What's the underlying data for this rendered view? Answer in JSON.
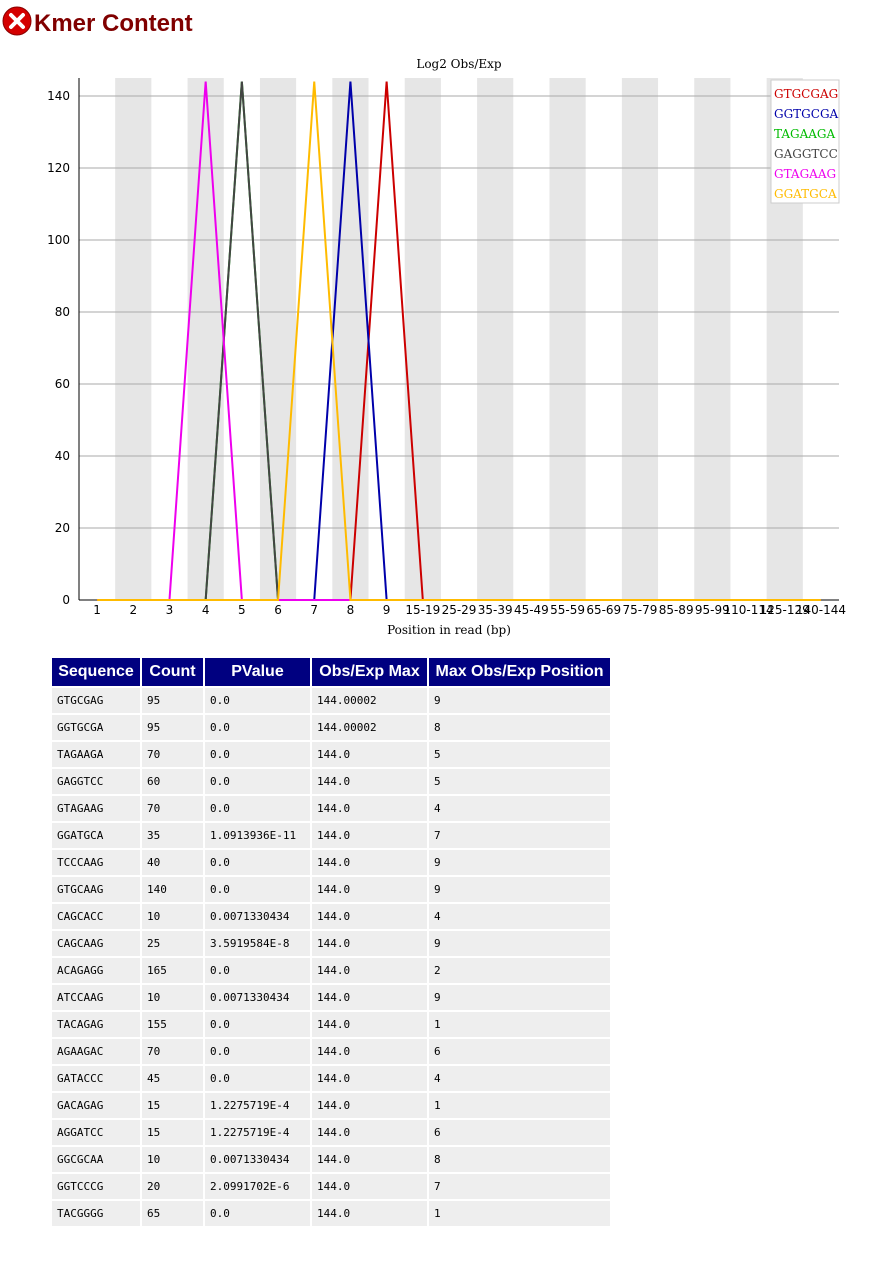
{
  "header": {
    "title": "Kmer Content",
    "status_icon": "fail-icon"
  },
  "chart_data": {
    "type": "line",
    "title": "Log2 Obs/Exp",
    "xlabel": "Position in read (bp)",
    "ylabel": "",
    "categories": [
      "1",
      "2",
      "3",
      "4",
      "5",
      "6",
      "7",
      "8",
      "9",
      "15-19",
      "25-29",
      "35-39",
      "45-49",
      "55-59",
      "65-69",
      "75-79",
      "85-89",
      "95-99",
      "110-114",
      "125-129",
      "140-144"
    ],
    "ylim": [
      0,
      145
    ],
    "yticks": [
      0,
      20,
      40,
      60,
      80,
      100,
      120,
      140
    ],
    "legend_position": "top-right",
    "series": [
      {
        "name": "GTGCGAG",
        "color": "#cc0000",
        "peak_index": 8,
        "peak": 144
      },
      {
        "name": "GGTGCGA",
        "color": "#0000aa",
        "peak_index": 7,
        "peak": 144
      },
      {
        "name": "TAGAAGA",
        "color": "#00bb00",
        "peak_index": 4,
        "peak": 144
      },
      {
        "name": "GAGGTCC",
        "color": "#444444",
        "peak_index": 4,
        "peak": 144
      },
      {
        "name": "GTAGAAG",
        "color": "#ee00ee",
        "peak_index": 3,
        "peak": 144
      },
      {
        "name": "GGATGCA",
        "color": "#ffbb00",
        "peak_index": 6,
        "peak": 144
      }
    ]
  },
  "table": {
    "headers": [
      "Sequence",
      "Count",
      "PValue",
      "Obs/Exp Max",
      "Max Obs/Exp Position"
    ],
    "rows": [
      [
        "GTGCGAG",
        "95",
        "0.0",
        "144.00002",
        "9"
      ],
      [
        "GGTGCGA",
        "95",
        "0.0",
        "144.00002",
        "8"
      ],
      [
        "TAGAAGA",
        "70",
        "0.0",
        "144.0",
        "5"
      ],
      [
        "GAGGTCC",
        "60",
        "0.0",
        "144.0",
        "5"
      ],
      [
        "GTAGAAG",
        "70",
        "0.0",
        "144.0",
        "4"
      ],
      [
        "GGATGCA",
        "35",
        "1.0913936E-11",
        "144.0",
        "7"
      ],
      [
        "TCCCAAG",
        "40",
        "0.0",
        "144.0",
        "9"
      ],
      [
        "GTGCAAG",
        "140",
        "0.0",
        "144.0",
        "9"
      ],
      [
        "CAGCACC",
        "10",
        "0.0071330434",
        "144.0",
        "4"
      ],
      [
        "CAGCAAG",
        "25",
        "3.5919584E-8",
        "144.0",
        "9"
      ],
      [
        "ACAGAGG",
        "165",
        "0.0",
        "144.0",
        "2"
      ],
      [
        "ATCCAAG",
        "10",
        "0.0071330434",
        "144.0",
        "9"
      ],
      [
        "TACAGAG",
        "155",
        "0.0",
        "144.0",
        "1"
      ],
      [
        "AGAAGAC",
        "70",
        "0.0",
        "144.0",
        "6"
      ],
      [
        "GATACCC",
        "45",
        "0.0",
        "144.0",
        "4"
      ],
      [
        "GACAGAG",
        "15",
        "1.2275719E-4",
        "144.0",
        "1"
      ],
      [
        "AGGATCC",
        "15",
        "1.2275719E-4",
        "144.0",
        "6"
      ],
      [
        "GGCGCAA",
        "10",
        "0.0071330434",
        "144.0",
        "8"
      ],
      [
        "GGTCCCG",
        "20",
        "2.0991702E-6",
        "144.0",
        "7"
      ],
      [
        "TACGGGG",
        "65",
        "0.0",
        "144.0",
        "1"
      ]
    ]
  }
}
